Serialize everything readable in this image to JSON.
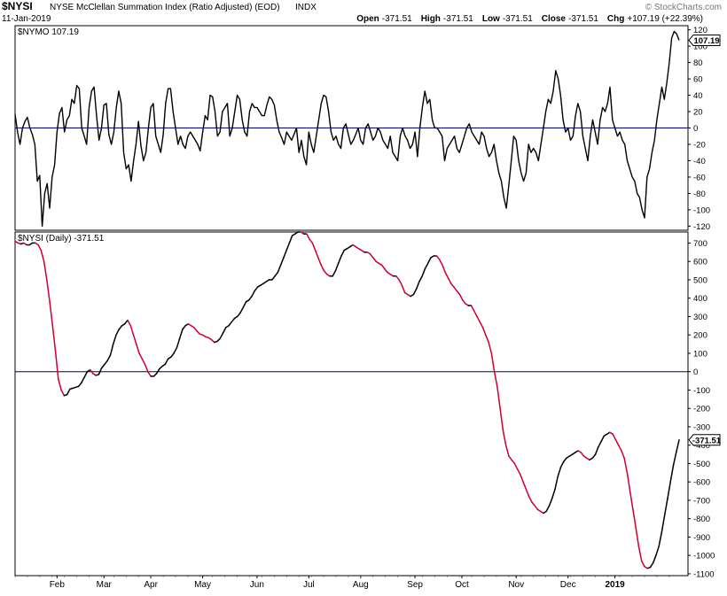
{
  "header": {
    "symbol": "$NYSI",
    "name": "NYSE McClellan Summation Index (Ratio Adjusted) (EOD)",
    "exchange": "INDX",
    "date": "11-Jan-2019",
    "ohlc": [
      {
        "label": "Open",
        "value": "-371.51"
      },
      {
        "label": "High",
        "value": "-371.51"
      },
      {
        "label": "Low",
        "value": "-371.51"
      },
      {
        "label": "Close",
        "value": "-371.51"
      },
      {
        "label": "Chg",
        "value": "+107.19 (+22.39%)"
      }
    ],
    "watermark": "© StockCharts.com"
  },
  "colors": {
    "line": "#000000",
    "falling": "#cc0033",
    "zero": "#000066",
    "badge": "#000000"
  },
  "chart_data": [
    {
      "type": "line",
      "title": "$NYMO 107.19",
      "series": [
        {
          "name": "$NYMO",
          "last": "107.19",
          "values": [
            17,
            -5,
            -20,
            0,
            8,
            13,
            0,
            -8,
            -20,
            -65,
            -58,
            -120,
            -80,
            -68,
            -98,
            -60,
            -45,
            -5,
            18,
            25,
            -5,
            10,
            15,
            35,
            30,
            52,
            48,
            0,
            -10,
            -20,
            25,
            45,
            50,
            15,
            -15,
            0,
            28,
            30,
            -8,
            -20,
            -5,
            25,
            45,
            30,
            -30,
            -50,
            -45,
            -65,
            -40,
            -20,
            8,
            -22,
            -40,
            -30,
            0,
            25,
            30,
            -10,
            -20,
            -30,
            -8,
            30,
            48,
            48,
            20,
            0,
            -20,
            -10,
            -20,
            -25,
            -10,
            -5,
            -10,
            -15,
            -20,
            -28,
            -5,
            15,
            10,
            40,
            38,
            20,
            -10,
            -5,
            20,
            25,
            30,
            -10,
            0,
            20,
            40,
            35,
            10,
            -5,
            -10,
            20,
            30,
            25,
            25,
            20,
            15,
            15,
            28,
            38,
            35,
            28,
            10,
            -5,
            -12,
            -20,
            -5,
            -10,
            -15,
            -8,
            0,
            -30,
            -15,
            -35,
            -45,
            -5,
            -20,
            -30,
            -10,
            10,
            30,
            40,
            38,
            20,
            -5,
            -15,
            -10,
            -20,
            -25,
            0,
            5,
            -8,
            -20,
            -15,
            -8,
            0,
            -15,
            -20,
            0,
            5,
            -5,
            -15,
            -10,
            0,
            -5,
            -15,
            -20,
            -25,
            -10,
            -30,
            -35,
            -40,
            -10,
            0,
            -10,
            -15,
            -25,
            -20,
            -5,
            -35,
            0,
            25,
            45,
            30,
            35,
            10,
            0,
            0,
            -5,
            -10,
            -40,
            -25,
            -20,
            -15,
            -10,
            -25,
            -30,
            -20,
            -10,
            0,
            5,
            -5,
            -10,
            -15,
            -20,
            -5,
            -10,
            -25,
            -35,
            -30,
            -20,
            -40,
            -55,
            -65,
            -85,
            -98,
            -70,
            -40,
            -10,
            -15,
            -40,
            -55,
            -65,
            -55,
            -20,
            -30,
            -25,
            -30,
            -40,
            -20,
            0,
            20,
            35,
            30,
            45,
            70,
            60,
            40,
            10,
            -5,
            0,
            -15,
            -10,
            15,
            30,
            20,
            -10,
            -25,
            -40,
            -10,
            10,
            -5,
            -20,
            10,
            25,
            20,
            30,
            50,
            10,
            0,
            -10,
            -5,
            -15,
            -20,
            -40,
            -50,
            -60,
            -65,
            -80,
            -85,
            -100,
            -110,
            -60,
            -50,
            -30,
            -15,
            10,
            30,
            50,
            35,
            55,
            80,
            110,
            118,
            115,
            107.19
          ]
        }
      ],
      "ylim": [
        -125,
        125
      ],
      "yticks": [
        120,
        100,
        80,
        60,
        40,
        20,
        0,
        -20,
        -40,
        -60,
        -80,
        -100,
        -120
      ],
      "zero_line": true
    },
    {
      "type": "line",
      "title": "$NYSI (Daily) -371.51",
      "series": [
        {
          "name": "$NYSI",
          "last": "-371.51",
          "values": [
            710,
            700,
            695,
            700,
            690,
            690,
            700,
            700,
            690,
            660,
            600,
            500,
            380,
            250,
            110,
            -40,
            -100,
            -130,
            -125,
            -95,
            -90,
            -85,
            -80,
            -60,
            -30,
            0,
            10,
            -10,
            -20,
            -15,
            20,
            40,
            60,
            90,
            150,
            200,
            230,
            250,
            260,
            280,
            250,
            200,
            150,
            100,
            70,
            40,
            0,
            -25,
            -25,
            -10,
            15,
            30,
            40,
            70,
            80,
            100,
            130,
            180,
            230,
            250,
            260,
            250,
            240,
            220,
            205,
            200,
            190,
            185,
            175,
            160,
            165,
            180,
            210,
            240,
            250,
            270,
            290,
            300,
            320,
            350,
            380,
            390,
            410,
            440,
            460,
            470,
            480,
            490,
            500,
            500,
            520,
            540,
            580,
            620,
            660,
            700,
            740,
            750,
            760,
            760,
            750,
            750,
            720,
            700,
            660,
            620,
            580,
            550,
            530,
            520,
            520,
            550,
            590,
            630,
            660,
            670,
            680,
            690,
            680,
            670,
            660,
            650,
            650,
            640,
            620,
            600,
            590,
            580,
            560,
            540,
            530,
            520,
            520,
            500,
            470,
            430,
            420,
            410,
            420,
            450,
            490,
            520,
            560,
            590,
            620,
            630,
            630,
            610,
            580,
            540,
            510,
            480,
            460,
            440,
            420,
            390,
            370,
            360,
            360,
            330,
            300,
            270,
            240,
            200,
            160,
            100,
            0,
            -80,
            -200,
            -320,
            -400,
            -460,
            -480,
            -500,
            -530,
            -560,
            -600,
            -640,
            -680,
            -710,
            -730,
            -750,
            -760,
            -770,
            -760,
            -730,
            -690,
            -640,
            -570,
            -520,
            -490,
            -470,
            -460,
            -450,
            -440,
            -430,
            -440,
            -460,
            -470,
            -480,
            -470,
            -450,
            -410,
            -380,
            -350,
            -340,
            -330,
            -340,
            -370,
            -400,
            -430,
            -470,
            -550,
            -650,
            -750,
            -850,
            -950,
            -1030,
            -1060,
            -1070,
            -1065,
            -1040,
            -1000,
            -950,
            -870,
            -780,
            -690,
            -600,
            -510,
            -440,
            -371.51
          ]
        }
      ],
      "ylim": [
        -1110,
        760
      ],
      "yticks": [
        700,
        600,
        500,
        400,
        300,
        200,
        100,
        0,
        -100,
        -200,
        -300,
        -400,
        -500,
        -600,
        -700,
        -800,
        -900,
        -1000,
        -1100
      ],
      "zero_line": true
    }
  ],
  "x_axis": {
    "labels": [
      {
        "label": "Feb",
        "index": 17,
        "bold": false
      },
      {
        "label": "Mar",
        "index": 36,
        "bold": false
      },
      {
        "label": "Apr",
        "index": 55,
        "bold": false
      },
      {
        "label": "May",
        "index": 76,
        "bold": false
      },
      {
        "label": "Jun",
        "index": 98,
        "bold": false
      },
      {
        "label": "Jul",
        "index": 119,
        "bold": false
      },
      {
        "label": "Aug",
        "index": 140,
        "bold": false
      },
      {
        "label": "Sep",
        "index": 162,
        "bold": false
      },
      {
        "label": "Oct",
        "index": 181,
        "bold": false
      },
      {
        "label": "Nov",
        "index": 203,
        "bold": false
      },
      {
        "label": "Dec",
        "index": 224,
        "bold": false
      },
      {
        "label": "2019",
        "index": 243,
        "bold": true
      }
    ]
  }
}
